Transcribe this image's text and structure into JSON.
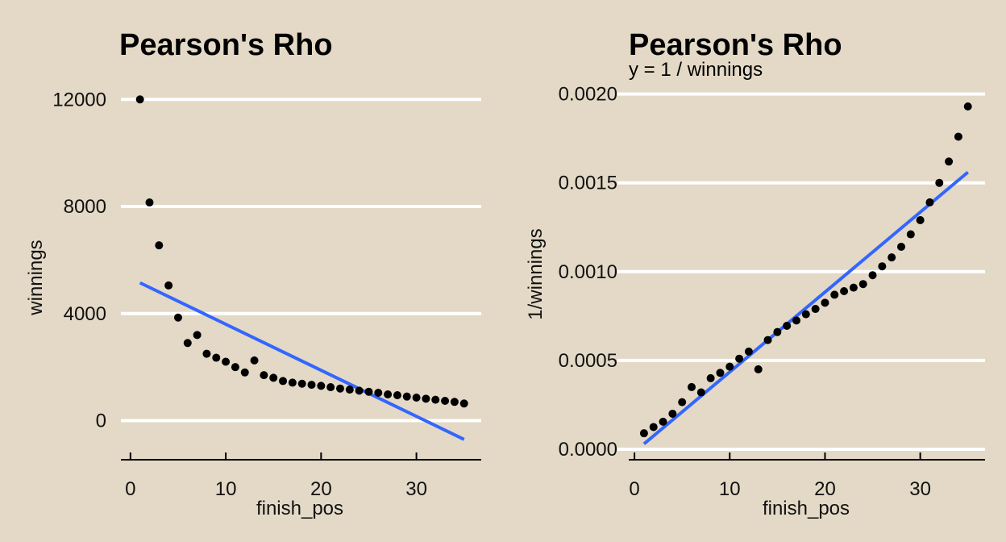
{
  "chart_data": [
    {
      "type": "scatter",
      "title": "Pearson's Rho",
      "subtitle": "",
      "xlabel": "finish_pos",
      "ylabel": "winnings",
      "xlim": [
        -1,
        36.8
      ],
      "ylim": [
        -1400,
        12400
      ],
      "x_ticks": [
        0,
        10,
        20,
        30
      ],
      "y_ticks": [
        0,
        4000,
        8000,
        12000
      ],
      "y_tick_labels": [
        "0",
        "4000",
        "8000",
        "12000"
      ],
      "grid": "horizontal",
      "colors": {
        "background": "#e3d9c6",
        "points": "#000000",
        "fit_line": "#3366ff",
        "grid": "#ffffff"
      },
      "series": [
        {
          "x": [
            1,
            2,
            3,
            4,
            5,
            6,
            7,
            8,
            9,
            10,
            11,
            12,
            13,
            14,
            15,
            16,
            17,
            18,
            19,
            20,
            21,
            22,
            23,
            24,
            25,
            26,
            27,
            28,
            29,
            30,
            31,
            32,
            33,
            34,
            35
          ],
          "y": [
            12000,
            8150,
            6550,
            5050,
            3850,
            2900,
            3200,
            2500,
            2350,
            2200,
            2000,
            1800,
            2250,
            1700,
            1600,
            1480,
            1420,
            1380,
            1340,
            1300,
            1250,
            1200,
            1160,
            1120,
            1080,
            1040,
            980,
            950,
            900,
            860,
            820,
            780,
            740,
            700,
            640
          ]
        }
      ],
      "fit_line": {
        "x": [
          1,
          35
        ],
        "y": [
          5150,
          -700
        ]
      }
    },
    {
      "type": "scatter",
      "title": "Pearson's Rho",
      "subtitle": "y = 1 / winnings",
      "xlabel": "finish_pos",
      "ylabel": "1/winnings",
      "xlim": [
        -0.6,
        36.8
      ],
      "ylim": [
        -5e-05,
        0.00203
      ],
      "x_ticks": [
        0,
        10,
        20,
        30
      ],
      "y_ticks": [
        0,
        0.0005,
        0.001,
        0.0015,
        0.002
      ],
      "y_tick_labels": [
        "0.0000",
        "0.0005",
        "0.0010",
        "0.0015",
        "0.0020"
      ],
      "grid": "horizontal",
      "colors": {
        "background": "#e3d9c6",
        "points": "#000000",
        "fit_line": "#3366ff",
        "grid": "#ffffff"
      },
      "series": [
        {
          "x": [
            1,
            2,
            3,
            4,
            5,
            6,
            7,
            8,
            9,
            10,
            11,
            12,
            13,
            14,
            15,
            16,
            17,
            18,
            19,
            20,
            21,
            22,
            23,
            24,
            25,
            26,
            27,
            28,
            29,
            30,
            31,
            32,
            33,
            34,
            35
          ],
          "y": [
            9e-05,
            0.000125,
            0.000155,
            0.0002,
            0.000265,
            0.00035,
            0.00032,
            0.0004,
            0.00043,
            0.000465,
            0.00051,
            0.00055,
            0.00045,
            0.000615,
            0.00066,
            0.000695,
            0.000725,
            0.00076,
            0.00079,
            0.000825,
            0.00087,
            0.00089,
            0.00091,
            0.00093,
            0.00098,
            0.00103,
            0.00108,
            0.00114,
            0.00121,
            0.00129,
            0.00139,
            0.0015,
            0.00162,
            0.00176,
            0.00193
          ]
        }
      ],
      "fit_line": {
        "x": [
          1,
          35
        ],
        "y": [
          3e-05,
          0.00156
        ]
      }
    }
  ]
}
